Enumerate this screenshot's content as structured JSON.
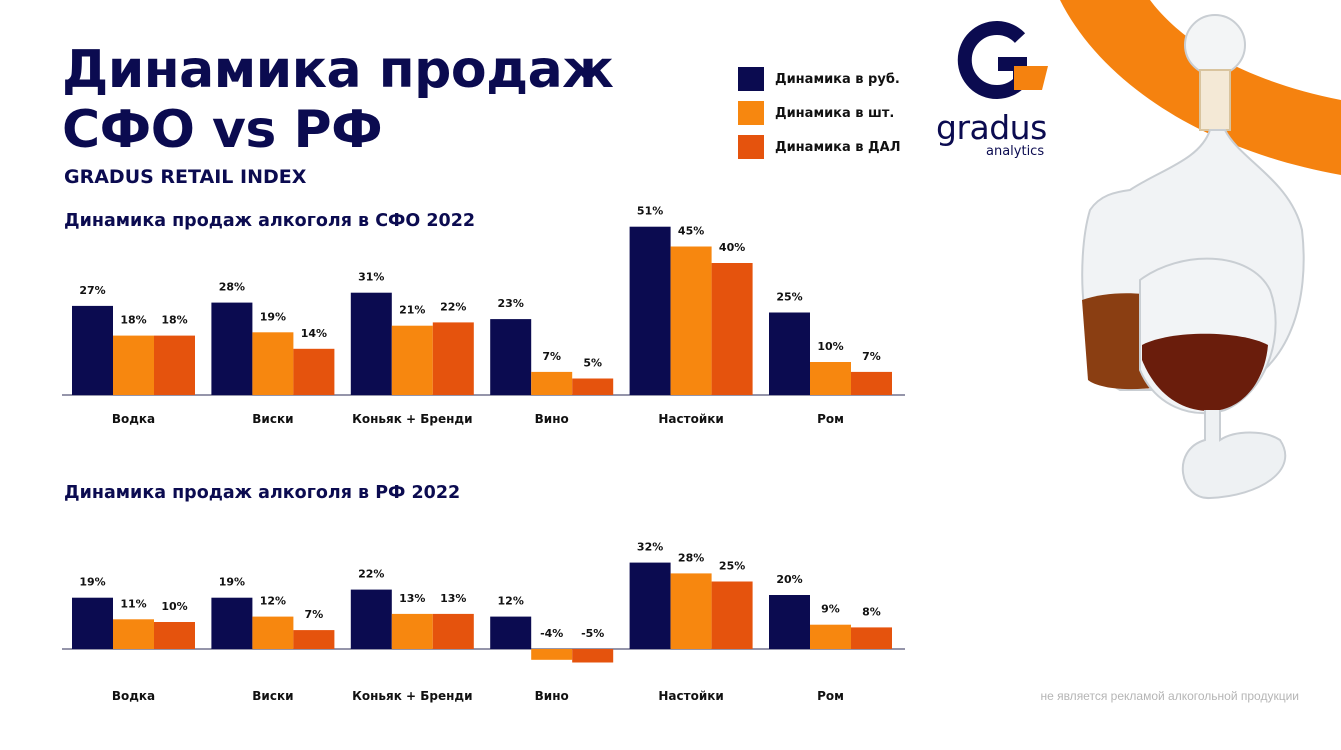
{
  "page": {
    "title_line1": "Динамика продаж",
    "title_line2": "СФО vs РФ",
    "subtitle": "GRADUS RETAIL INDEX",
    "disclaimer": "не является рекламой алкогольной продукции"
  },
  "logo": {
    "word": "gradus",
    "sub": "analytics"
  },
  "legend": [
    {
      "label": "Динамика в руб.",
      "color": "#0b0b50"
    },
    {
      "label": "Динамика в шт.",
      "color": "#f7870f"
    },
    {
      "label": "Динамика в ДАЛ",
      "color": "#e5530d"
    }
  ],
  "chart_data": [
    {
      "type": "bar",
      "title": "Динамика продаж алкоголя в СФО 2022",
      "categories": [
        "Водка",
        "Виски",
        "Коньяк + Бренди",
        "Вино",
        "Настойки",
        "Ром"
      ],
      "series": [
        {
          "name": "Динамика в руб.",
          "values": [
            27,
            28,
            31,
            23,
            51,
            25
          ],
          "labels": [
            "27%",
            "28%",
            "31%",
            "23%",
            "51%",
            "25%"
          ]
        },
        {
          "name": "Динамика в шт.",
          "values": [
            18,
            19,
            21,
            7,
            45,
            10
          ],
          "labels": [
            "18%",
            "19%",
            "21%",
            "7%",
            "45%",
            "10%"
          ]
        },
        {
          "name": "Динамика в ДАЛ",
          "values": [
            18,
            14,
            22,
            5,
            40,
            7
          ],
          "labels": [
            "18%",
            "14%",
            "22%",
            "5%",
            "40%",
            "7%"
          ]
        }
      ],
      "ylim": [
        0,
        51
      ],
      "grid": false
    },
    {
      "type": "bar",
      "title": "Динамика продаж алкоголя в РФ 2022",
      "categories": [
        "Водка",
        "Виски",
        "Коньяк + Бренди",
        "Вино",
        "Настойки",
        "Ром"
      ],
      "series": [
        {
          "name": "Динамика в руб.",
          "values": [
            19,
            19,
            22,
            12,
            32,
            20
          ],
          "labels": [
            "19%",
            "19%",
            "22%",
            "12%",
            "32%",
            "20%"
          ]
        },
        {
          "name": "Динамика в шт.",
          "values": [
            11,
            12,
            13,
            -4,
            28,
            9
          ],
          "labels": [
            "11%",
            "12%",
            "13%",
            "-4%",
            "28%",
            "9%"
          ]
        },
        {
          "name": "Динамика в ДАЛ",
          "values": [
            10,
            7,
            13,
            -5,
            25,
            8
          ],
          "labels": [
            "10%",
            "7%",
            "13%",
            "-5%",
            "25%",
            "8%"
          ]
        }
      ],
      "ylim": [
        -5,
        32
      ],
      "grid": false
    }
  ]
}
